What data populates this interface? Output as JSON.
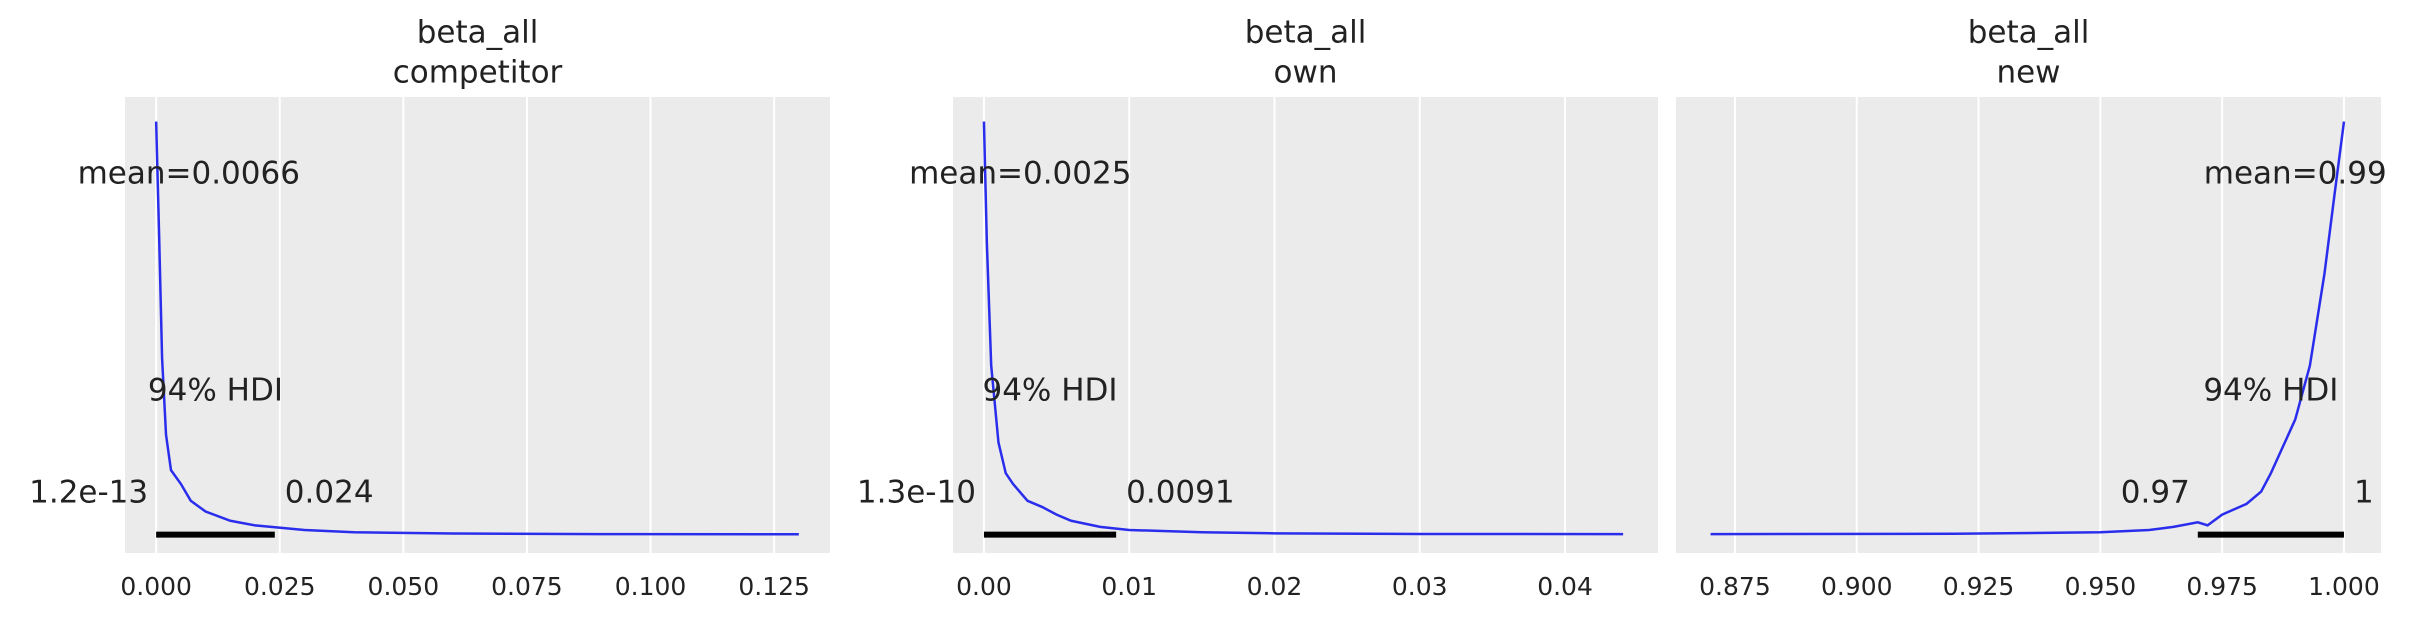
{
  "chart_data": [
    {
      "type": "density",
      "title": "beta_all",
      "subtitle": "competitor",
      "x": [
        0,
        0.0006,
        0.0012,
        0.002,
        0.003,
        0.005,
        0.007,
        0.01,
        0.015,
        0.02,
        0.03,
        0.04,
        0.06,
        0.09,
        0.13
      ],
      "values": [
        269,
        195,
        115,
        65,
        42,
        33,
        22,
        15,
        9,
        6,
        3,
        1.5,
        0.7,
        0.3,
        0.2
      ],
      "color": "#2a2eec",
      "xlim": [
        -0.0063,
        0.1363
      ],
      "ylim": [
        -12,
        285
      ],
      "grid": true,
      "xticks": [
        {
          "value": 0,
          "label": "0.000"
        },
        {
          "value": 0.025,
          "label": "0.025"
        },
        {
          "value": 0.05,
          "label": "0.050"
        },
        {
          "value": 0.075,
          "label": "0.075"
        },
        {
          "value": 0.1,
          "label": "0.100"
        },
        {
          "value": 0.125,
          "label": "0.125"
        }
      ],
      "mean": {
        "value": 0.0066,
        "label": "mean=0.0066"
      },
      "hdi_label": "94% HDI",
      "hdi": [
        {
          "value": 1.2e-13,
          "label": "1.2e-13"
        },
        {
          "value": 0.024,
          "label": "0.024"
        }
      ],
      "hdi_color": "#000000"
    },
    {
      "type": "density",
      "title": "beta_all",
      "subtitle": "own",
      "x": [
        0,
        0.0002,
        0.0005,
        0.001,
        0.0015,
        0.002,
        0.003,
        0.004,
        0.005,
        0.006,
        0.008,
        0.01,
        0.015,
        0.02,
        0.03,
        0.044
      ],
      "values": [
        269,
        190,
        110,
        60,
        40,
        33,
        22,
        18,
        13,
        9,
        5,
        3,
        1.5,
        0.8,
        0.4,
        0.3
      ],
      "color": "#2a2eec",
      "xlim": [
        -0.00213,
        0.0464
      ],
      "ylim": [
        -12,
        285
      ],
      "grid": true,
      "xticks": [
        {
          "value": 0,
          "label": "0.00"
        },
        {
          "value": 0.01,
          "label": "0.01"
        },
        {
          "value": 0.02,
          "label": "0.02"
        },
        {
          "value": 0.03,
          "label": "0.03"
        },
        {
          "value": 0.04,
          "label": "0.04"
        }
      ],
      "mean": {
        "value": 0.0025,
        "label": "mean=0.0025"
      },
      "hdi_label": "94% HDI",
      "hdi": [
        {
          "value": 1.3e-10,
          "label": "1.3e-10"
        },
        {
          "value": 0.0091,
          "label": "0.0091"
        }
      ],
      "hdi_color": "#000000"
    },
    {
      "type": "density",
      "title": "beta_all",
      "subtitle": "new",
      "x": [
        0.87,
        0.92,
        0.95,
        0.96,
        0.965,
        0.97,
        0.972,
        0.975,
        0.98,
        0.983,
        0.985,
        0.99,
        0.993,
        0.996,
        0.998,
        1.0
      ],
      "values": [
        0.3,
        0.5,
        1.5,
        3,
        5,
        8,
        6,
        13,
        20,
        28,
        40,
        75,
        110,
        170,
        220,
        269
      ],
      "color": "#2a2eec",
      "xlim": [
        0.8629,
        1.0076
      ],
      "ylim": [
        -12,
        285
      ],
      "grid": true,
      "xticks": [
        {
          "value": 0.875,
          "label": "0.875"
        },
        {
          "value": 0.9,
          "label": "0.900"
        },
        {
          "value": 0.925,
          "label": "0.925"
        },
        {
          "value": 0.95,
          "label": "0.950"
        },
        {
          "value": 0.975,
          "label": "0.975"
        },
        {
          "value": 1.0,
          "label": "1.000"
        }
      ],
      "mean": {
        "value": 0.99,
        "label": "mean=0.99"
      },
      "hdi_label": "94% HDI",
      "hdi": [
        {
          "value": 0.97,
          "label": "0.97"
        },
        {
          "value": 1,
          "label": "1"
        }
      ],
      "hdi_color": "#000000"
    }
  ]
}
